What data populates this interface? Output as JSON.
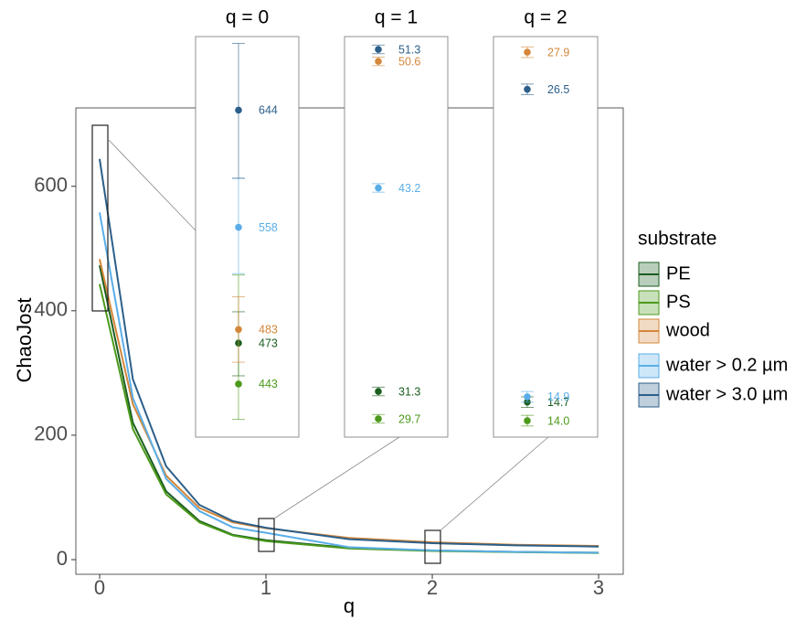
{
  "chart_data": {
    "type": "line",
    "x_label": "q",
    "y_label": "ChaoJost",
    "legend_title": "substrate",
    "xlim": [
      -0.143,
      3.148
    ],
    "ylim": [
      -23.5,
      726
    ],
    "xticks": [
      0,
      1,
      2,
      3
    ],
    "yticks": [
      0,
      200,
      400,
      600
    ],
    "x": [
      0,
      0.2,
      0.4,
      0.6,
      0.8,
      1,
      1.5,
      2,
      2.5,
      3
    ],
    "series": [
      {
        "name": "PE",
        "color": "#1b5e20",
        "values": [
          473,
          220,
          110,
          62,
          40,
          31.3,
          19,
          14.7,
          12.5,
          11.2
        ]
      },
      {
        "name": "PS",
        "color": "#4c9a1c",
        "values": [
          443,
          210,
          105,
          60,
          39,
          29.7,
          18,
          14.0,
          12,
          10.8
        ]
      },
      {
        "name": "wood",
        "color": "#d4873a",
        "values": [
          483,
          250,
          135,
          83,
          60,
          50.6,
          35,
          27.9,
          24,
          22
        ]
      },
      {
        "name": "water > 0.2 µm",
        "color": "#5aaee8",
        "values": [
          558,
          260,
          130,
          78,
          52,
          43.2,
          20,
          14.9,
          12.5,
          11.2
        ]
      },
      {
        "name": "water > 3.0 µm",
        "color": "#2c5f8a",
        "values": [
          644,
          290,
          150,
          88,
          62,
          51.3,
          33,
          26.5,
          23,
          21
        ]
      }
    ],
    "insets": [
      {
        "title": "q = 0",
        "ylim": [
          404,
          698
        ],
        "values": [
          473,
          443,
          483,
          558,
          644
        ],
        "value_labels": [
          "473",
          "443",
          "483",
          "558",
          "644"
        ],
        "lower": [
          449,
          417,
          459,
          524,
          594
        ],
        "upper": [
          496,
          523,
          507,
          594,
          693
        ]
      },
      {
        "title": "q = 1",
        "ylim": [
          28.63,
          52.05
        ],
        "values": [
          31.3,
          29.7,
          50.6,
          43.2,
          51.3
        ],
        "value_labels": [
          "31.3",
          "29.7",
          "50.6",
          "43.2",
          "51.3"
        ],
        "lower": [
          31.05,
          29.45,
          50.35,
          42.95,
          51.05
        ],
        "upper": [
          31.55,
          29.95,
          50.85,
          43.45,
          51.55
        ]
      },
      {
        "title": "q = 2",
        "ylim": [
          13.38,
          28.49
        ],
        "values": [
          14.7,
          14.0,
          27.9,
          14.9,
          26.5
        ],
        "value_labels": [
          "14.7",
          "14.0",
          "27.9",
          "14.9",
          "26.5"
        ],
        "lower": [
          14.5,
          13.8,
          27.7,
          14.7,
          26.3
        ],
        "upper": [
          14.9,
          14.2,
          28.1,
          15.1,
          26.7
        ]
      }
    ]
  }
}
